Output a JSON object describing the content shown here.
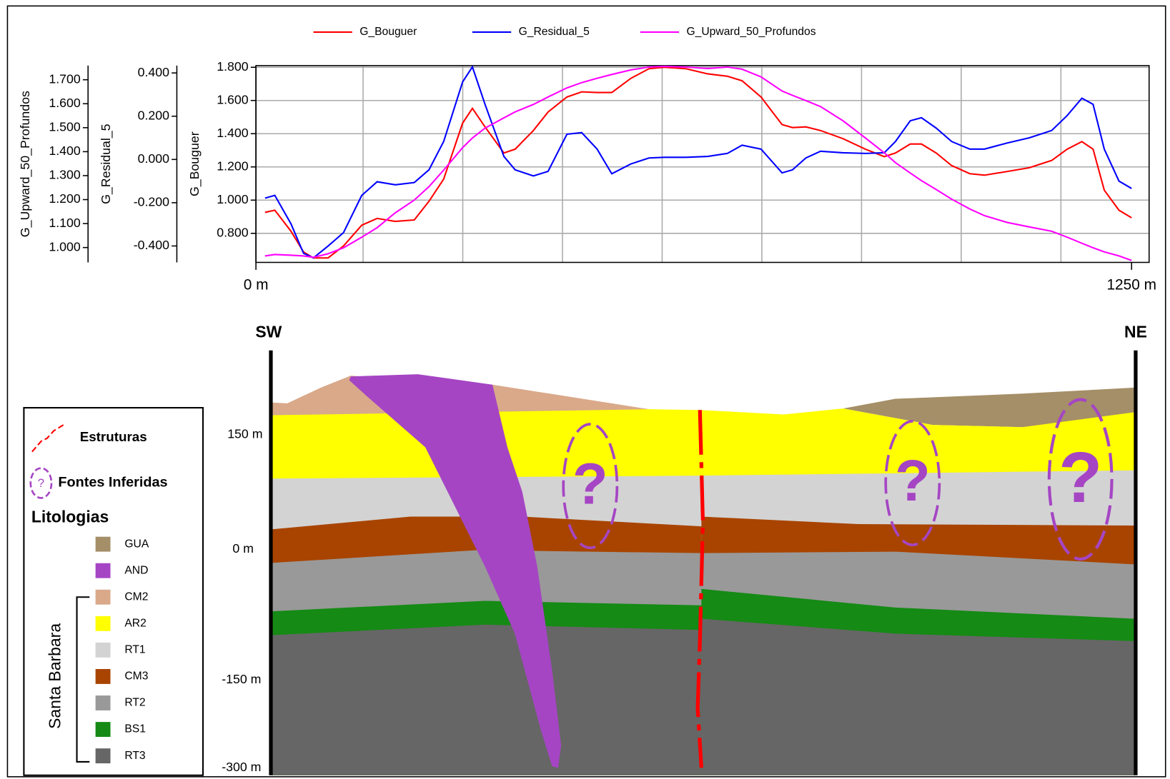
{
  "chart_data": {
    "type": "line",
    "x": [
      13,
      27,
      50,
      68,
      82,
      103,
      125,
      151,
      173,
      199,
      226,
      247,
      268,
      295,
      309,
      327,
      354,
      370,
      396,
      417,
      444,
      465,
      487,
      508,
      535,
      561,
      583,
      614,
      645,
      673,
      694,
      721,
      751,
      766,
      785,
      806,
      838,
      870,
      897,
      913,
      934,
      950,
      971,
      993,
      1019,
      1040,
      1072,
      1104,
      1136,
      1158,
      1179,
      1195,
      1211,
      1232,
      1250
    ],
    "xlim": [
      0,
      1275
    ],
    "xticks": [
      {
        "value": 0,
        "label": "0 m"
      },
      {
        "value": 1250,
        "label": "1250 m"
      }
    ],
    "ylabel": "G_Bouguer",
    "y2label": "G_Residual_5",
    "y3label": "G_Upward_50_Profundos",
    "ylim": [
      0.625,
      1.81
    ],
    "yticks": [
      {
        "value": 0.8,
        "label": "0.800"
      },
      {
        "value": 1.0,
        "label": "1.000"
      },
      {
        "value": 1.2,
        "label": "1.200"
      },
      {
        "value": 1.4,
        "label": "1.400"
      },
      {
        "value": 1.6,
        "label": "1.600"
      },
      {
        "value": 1.8,
        "label": "1.800"
      }
    ],
    "y2lim": [
      -0.476,
      0.434
    ],
    "y2ticks": [
      {
        "value": -0.4,
        "label": "-0.400"
      },
      {
        "value": -0.2,
        "label": "-0.200"
      },
      {
        "value": 0,
        "label": "0.000"
      },
      {
        "value": 0.2,
        "label": "0.200"
      },
      {
        "value": 0.4,
        "label": "0.400"
      }
    ],
    "y3lim": [
      0.938,
      1.759
    ],
    "y3ticks": [
      {
        "value": 1.0,
        "label": "1.000"
      },
      {
        "value": 1.1,
        "label": "1.100"
      },
      {
        "value": 1.2,
        "label": "1.200"
      },
      {
        "value": 1.3,
        "label": "1.300"
      },
      {
        "value": 1.4,
        "label": "1.400"
      },
      {
        "value": 1.5,
        "label": "1.500"
      },
      {
        "value": 1.6,
        "label": "1.600"
      },
      {
        "value": 1.7,
        "label": "1.700"
      }
    ],
    "grid": true,
    "series": [
      {
        "name": "G_Bouguer",
        "color": "#ff0000",
        "axis": "y",
        "values": [
          0.926,
          0.939,
          0.813,
          0.688,
          0.652,
          0.652,
          0.724,
          0.849,
          0.89,
          0.872,
          0.881,
          0.993,
          1.127,
          1.464,
          1.553,
          1.441,
          1.284,
          1.307,
          1.419,
          1.531,
          1.621,
          1.652,
          1.648,
          1.648,
          1.733,
          1.791,
          1.8,
          1.791,
          1.76,
          1.746,
          1.719,
          1.621,
          1.455,
          1.437,
          1.441,
          1.419,
          1.37,
          1.307,
          1.262,
          1.284,
          1.338,
          1.338,
          1.284,
          1.208,
          1.159,
          1.15,
          1.172,
          1.195,
          1.239,
          1.307,
          1.352,
          1.307,
          1.06,
          0.939,
          0.894
        ]
      },
      {
        "name": "G_Residual_5",
        "color": "#0000ff",
        "axis": "y2",
        "values": [
          -0.179,
          -0.166,
          -0.297,
          -0.434,
          -0.455,
          -0.4,
          -0.338,
          -0.166,
          -0.103,
          -0.117,
          -0.107,
          -0.048,
          0.083,
          0.359,
          0.428,
          0.255,
          0.014,
          -0.048,
          -0.076,
          -0.055,
          0.117,
          0.124,
          0.048,
          -0.066,
          -0.021,
          0.007,
          0.01,
          0.01,
          0.014,
          0.028,
          0.066,
          0.048,
          -0.062,
          -0.048,
          0.007,
          0.038,
          0.031,
          0.028,
          0.031,
          0.083,
          0.179,
          0.193,
          0.145,
          0.083,
          0.048,
          0.048,
          0.076,
          0.1,
          0.134,
          0.203,
          0.283,
          0.255,
          0.048,
          -0.1,
          -0.134
        ]
      },
      {
        "name": "G_Upward_50_Profundos",
        "color": "#ff00ff",
        "axis": "y3",
        "values": [
          0.965,
          0.971,
          0.968,
          0.965,
          0.959,
          0.974,
          0.999,
          1.043,
          1.083,
          1.145,
          1.198,
          1.254,
          1.323,
          1.417,
          1.457,
          1.498,
          1.541,
          1.566,
          1.597,
          1.628,
          1.666,
          1.688,
          1.706,
          1.722,
          1.741,
          1.753,
          1.756,
          1.753,
          1.747,
          1.753,
          1.744,
          1.712,
          1.653,
          1.635,
          1.613,
          1.588,
          1.529,
          1.457,
          1.395,
          1.354,
          1.311,
          1.279,
          1.242,
          1.202,
          1.161,
          1.133,
          1.105,
          1.086,
          1.068,
          1.043,
          1.018,
          0.999,
          0.982,
          0.965,
          0.946
        ]
      }
    ]
  },
  "section": {
    "left_label": "SW",
    "right_label": "NE",
    "depth_labels": [
      "150 m",
      "0 m",
      "-150 m",
      "-300 m"
    ],
    "unknown": "?"
  },
  "legend": {
    "structures": "Estruturas",
    "sources": "Fontes Inferidas",
    "lithology_title": "Litologias",
    "group": "Santa Barbara",
    "items": [
      {
        "code": "GUA",
        "color": "#a58f68"
      },
      {
        "code": "AND",
        "color": "#a545c4"
      },
      {
        "code": "CM2",
        "color": "#d9a98a"
      },
      {
        "code": "AR2",
        "color": "#ffff00"
      },
      {
        "code": "RT1",
        "color": "#d3d3d3"
      },
      {
        "code": "CM3",
        "color": "#a94400"
      },
      {
        "code": "RT2",
        "color": "#999999"
      },
      {
        "code": "BS1",
        "color": "#158a15"
      },
      {
        "code": "RT3",
        "color": "#666666"
      }
    ]
  }
}
